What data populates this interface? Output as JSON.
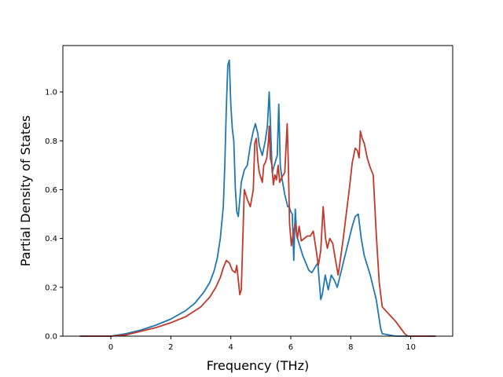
{
  "chart_data": {
    "type": "line",
    "title": "",
    "xlabel": "Frequency (THz)",
    "ylabel": "Partial Density of States",
    "xlim": [
      -1.6,
      11.4
    ],
    "ylim": [
      0.0,
      1.19
    ],
    "xticks": [
      0,
      2,
      4,
      6,
      8,
      10
    ],
    "yticks": [
      0.0,
      0.2,
      0.4,
      0.6,
      0.8,
      1.0
    ],
    "xtick_labels": [
      "0",
      "2",
      "4",
      "6",
      "8",
      "10"
    ],
    "ytick_labels": [
      "0.0",
      "0.2",
      "0.4",
      "0.6",
      "0.8",
      "1.0"
    ],
    "grid": false,
    "series": [
      {
        "color": "#1f77b4",
        "x": [
          -1.03,
          0,
          0.5,
          1,
          1.5,
          2,
          2.5,
          2.8,
          3.1,
          3.3,
          3.45,
          3.55,
          3.65,
          3.75,
          3.8,
          3.85,
          3.9,
          3.95,
          4.0,
          4.05,
          4.1,
          4.15,
          4.2,
          4.25,
          4.35,
          4.45,
          4.55,
          4.65,
          4.75,
          4.82,
          4.9,
          4.95,
          5.05,
          5.15,
          5.22,
          5.28,
          5.32,
          5.38,
          5.45,
          5.5,
          5.55,
          5.6,
          5.65,
          5.7,
          5.8,
          5.9,
          5.95,
          6.0,
          6.05,
          6.1,
          6.15,
          6.2,
          6.3,
          6.4,
          6.5,
          6.6,
          6.7,
          6.8,
          6.9,
          7.0,
          7.05,
          7.15,
          7.25,
          7.35,
          7.45,
          7.55,
          7.65,
          7.75,
          7.85,
          7.95,
          8.05,
          8.15,
          8.25,
          8.3,
          8.35,
          8.45,
          8.55,
          8.65,
          8.75,
          8.85,
          8.95,
          9.0,
          9.05,
          9.5,
          10.83
        ],
        "y": [
          0.0,
          0.0,
          0.01,
          0.025,
          0.045,
          0.07,
          0.105,
          0.135,
          0.18,
          0.22,
          0.27,
          0.32,
          0.4,
          0.53,
          0.7,
          0.93,
          1.11,
          1.13,
          0.95,
          0.85,
          0.8,
          0.61,
          0.51,
          0.49,
          0.63,
          0.68,
          0.7,
          0.78,
          0.84,
          0.87,
          0.83,
          0.78,
          0.74,
          0.8,
          0.86,
          1.0,
          0.88,
          0.67,
          0.7,
          0.72,
          0.74,
          0.95,
          0.7,
          0.65,
          0.58,
          0.53,
          0.53,
          0.51,
          0.5,
          0.31,
          0.52,
          0.41,
          0.37,
          0.33,
          0.3,
          0.27,
          0.26,
          0.28,
          0.3,
          0.15,
          0.17,
          0.25,
          0.19,
          0.25,
          0.23,
          0.2,
          0.25,
          0.3,
          0.35,
          0.4,
          0.45,
          0.49,
          0.5,
          0.45,
          0.4,
          0.33,
          0.29,
          0.25,
          0.2,
          0.15,
          0.07,
          0.03,
          0.01,
          0.0,
          0.0
        ]
      },
      {
        "color": "#c0392b",
        "x": [
          -1.03,
          0,
          0.5,
          1,
          1.5,
          2,
          2.5,
          3.0,
          3.3,
          3.5,
          3.65,
          3.75,
          3.85,
          3.95,
          4.05,
          4.15,
          4.2,
          4.25,
          4.3,
          4.35,
          4.45,
          4.55,
          4.65,
          4.75,
          4.8,
          4.85,
          4.9,
          4.95,
          5.05,
          5.1,
          5.15,
          5.2,
          5.25,
          5.28,
          5.32,
          5.37,
          5.42,
          5.47,
          5.52,
          5.58,
          5.63,
          5.7,
          5.8,
          5.88,
          5.92,
          5.96,
          6.02,
          6.08,
          6.15,
          6.22,
          6.28,
          6.35,
          6.45,
          6.55,
          6.65,
          6.75,
          6.85,
          6.92,
          7.0,
          7.08,
          7.16,
          7.22,
          7.3,
          7.4,
          7.48,
          7.58,
          7.65,
          7.75,
          7.85,
          7.95,
          8.05,
          8.15,
          8.22,
          8.28,
          8.32,
          8.38,
          8.45,
          8.55,
          8.65,
          8.75,
          8.85,
          8.95,
          9.05,
          9.5,
          9.8,
          9.9,
          10.83
        ],
        "y": [
          0.0,
          0.0,
          0.005,
          0.02,
          0.035,
          0.055,
          0.08,
          0.12,
          0.16,
          0.2,
          0.24,
          0.28,
          0.31,
          0.3,
          0.27,
          0.26,
          0.29,
          0.23,
          0.17,
          0.19,
          0.6,
          0.56,
          0.53,
          0.6,
          0.79,
          0.81,
          0.72,
          0.67,
          0.63,
          0.7,
          0.71,
          0.73,
          0.79,
          0.86,
          0.73,
          0.7,
          0.62,
          0.66,
          0.64,
          0.7,
          0.63,
          0.65,
          0.67,
          0.87,
          0.7,
          0.46,
          0.37,
          0.42,
          0.46,
          0.4,
          0.45,
          0.39,
          0.4,
          0.41,
          0.41,
          0.43,
          0.35,
          0.29,
          0.35,
          0.53,
          0.4,
          0.36,
          0.4,
          0.38,
          0.32,
          0.25,
          0.31,
          0.4,
          0.5,
          0.6,
          0.71,
          0.77,
          0.76,
          0.73,
          0.84,
          0.81,
          0.79,
          0.73,
          0.69,
          0.66,
          0.42,
          0.22,
          0.12,
          0.06,
          0.01,
          0.0,
          0.0
        ]
      }
    ]
  }
}
